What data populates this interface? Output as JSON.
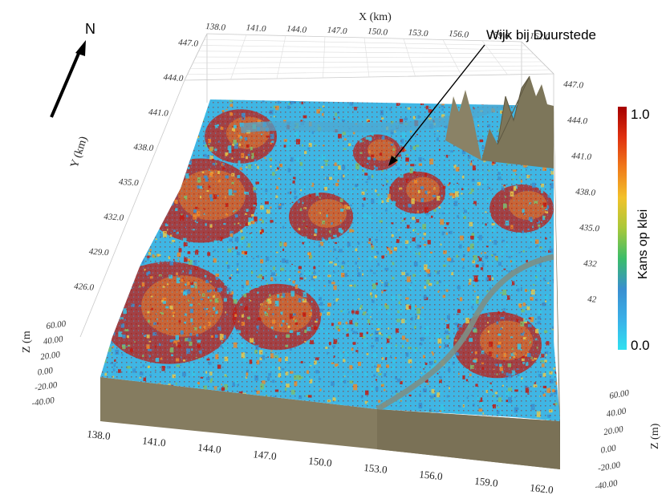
{
  "north_label": "N",
  "annotation": "Wijk bij Duurstede",
  "x_axis": {
    "title": "X (km)",
    "ticks": [
      "138.0",
      "141.0",
      "144.0",
      "147.0",
      "150.0",
      "153.0",
      "156.0",
      "159.0",
      "162.0"
    ]
  },
  "y_axis": {
    "title": "Y (km)",
    "ticks_left": [
      "447.0",
      "444.0",
      "441.0",
      "438.0",
      "435.0",
      "432.0",
      "429.0",
      "426.0"
    ],
    "ticks_right": [
      "447.0",
      "444.0",
      "441.0",
      "438.0",
      "435.0",
      "432",
      "42"
    ]
  },
  "z_axis": {
    "title_left": "Z (m",
    "title_right": "Z (m)",
    "ticks_left": [
      "60.00",
      "40.00",
      "20.00",
      "0.00",
      "-20.00",
      "-40.00"
    ],
    "ticks_right": [
      "60.00",
      "40.00",
      "20.00",
      "0.00",
      "-20.00",
      "-40.00"
    ]
  },
  "colorbar": {
    "title": "Kans op klei",
    "max_label": "1.0",
    "min_label": "0.0",
    "colors": [
      "#a50000",
      "#e03010",
      "#f07a1a",
      "#f2c22a",
      "#a8c83a",
      "#3bbd6a",
      "#3a8fd0",
      "#3ab0e8",
      "#30e0f0"
    ]
  },
  "map_colors": {
    "red": "#c41a10",
    "orange": "#ee8a2a",
    "yellow": "#e6c84a",
    "green": "#7fbf6a",
    "blue": "#3a8fd0",
    "cyan": "#35c6e8",
    "terrain": "#837a5e"
  }
}
